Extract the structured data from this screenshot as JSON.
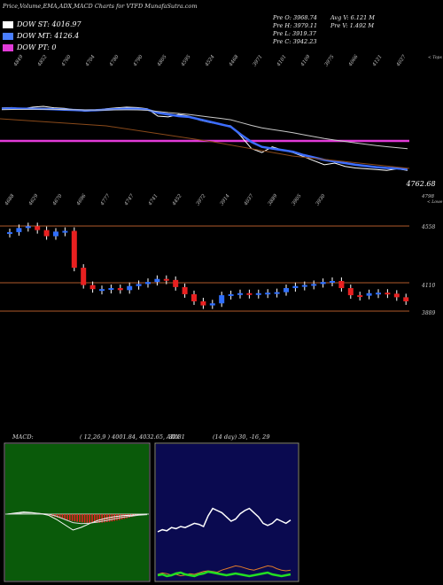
{
  "header": {
    "title": "Price,Volume,EMA,ADX,MACD Charts for VTFD MunafaSutra.com"
  },
  "legend": [
    {
      "label": "DOW ST: 4016.97",
      "color": "#ffffff"
    },
    {
      "label": "DOW MT: 4126.4",
      "color": "#4a7fff"
    },
    {
      "label": "DOW PT: 0",
      "color": "#e23bd8"
    }
  ],
  "ohlc": {
    "open": "Pre  O: 3968.74",
    "high": "Pre  H: 3979.11",
    "low": "Pre  L: 3919.37",
    "close": "Pre  C: 3942.23",
    "avg_volume": "Avg V: 6.121 M",
    "prev_volume": "Pre  V: 1.492  M"
  },
  "price_axis": {
    "current": "4762.68",
    "level_high": "4558",
    "level_mid": "4110",
    "level_low": "3889",
    "top_right_1": "4798",
    "top_right_2": "< Lowe",
    "corner": "< Tops"
  },
  "top_labels": [
    "4849",
    "4852",
    "4760",
    "4704",
    "4780",
    "4790",
    "4805",
    "4595",
    "4524",
    "4468",
    "3971",
    "4101",
    "4109",
    "3975",
    "4066",
    "4121",
    "4027"
  ],
  "bottom_labels": [
    "4688",
    "4629",
    "4670",
    "4696",
    "4777",
    "4747",
    "4741",
    "4452",
    "3972",
    "3914",
    "4037",
    "3889",
    "3905",
    "3930"
  ],
  "macd_panel": {
    "label": "MACD:",
    "values": "( 12,26,9 ) 4001.84,  4032.65,  -30.81"
  },
  "adx_panel": {
    "label": "ADX",
    "values": "(14  day) 30,  -16,  29"
  },
  "chart_data": [
    {
      "type": "line",
      "title": "EMA / Price",
      "series": [
        {
          "name": "Price",
          "values": [
            4800,
            4805,
            4790,
            4810,
            4820,
            4802,
            4795,
            4780,
            4760,
            4770,
            4790,
            4800,
            4810,
            4805,
            4790,
            4700,
            4690,
            4720,
            4700,
            4650,
            4620,
            4600,
            4580,
            4450,
            4300,
            4250,
            4320,
            4280,
            4250,
            4200,
            4150,
            4100,
            4120,
            4080,
            4060,
            4050,
            4040,
            4030,
            4050,
            4030
          ]
        },
        {
          "name": "EMA short",
          "values": [
            4790,
            4795,
            4792,
            4790,
            4788,
            4785,
            4780,
            4775,
            4770,
            4772,
            4778,
            4785,
            4790,
            4788,
            4780,
            4740,
            4720,
            4700,
            4690,
            4660,
            4630,
            4600,
            4570,
            4470,
            4380,
            4320,
            4300,
            4280,
            4260,
            4220,
            4190,
            4160,
            4140,
            4120,
            4100,
            4085,
            4070,
            4060,
            4055,
            4045
          ]
        },
        {
          "name": "EMA long",
          "values": [
            4780,
            4782,
            4783,
            4784,
            4784,
            4783,
            4781,
            4779,
            4776,
            4775,
            4775,
            4776,
            4777,
            4776,
            4772,
            4758,
            4744,
            4732,
            4720,
            4704,
            4688,
            4672,
            4655,
            4620,
            4585,
            4555,
            4535,
            4515,
            4495,
            4470,
            4447,
            4424,
            4405,
            4387,
            4369,
            4353,
            4337,
            4323,
            4310,
            4297
          ]
        }
      ],
      "support_line": 4558
    },
    {
      "type": "bar",
      "title": "Candles",
      "values": [
        4700,
        4740,
        4758,
        4720,
        4660,
        4705,
        4712,
        4350,
        4180,
        4140,
        4140,
        4150,
        4130,
        4170,
        4190,
        4210,
        4240,
        4230,
        4160,
        4090,
        4020,
        3980,
        4000,
        4080,
        4090,
        4100,
        4095,
        4100,
        4105,
        4110,
        4150,
        4170,
        4180,
        4190,
        4210,
        4220,
        4150,
        4080,
        4075,
        4100,
        4105,
        4095,
        4060,
        4020
      ]
    },
    {
      "type": "line",
      "title": "MACD",
      "series": [
        {
          "name": "MACD",
          "values": [
            0,
            2,
            4,
            3,
            1,
            -2,
            -10,
            -20,
            -30,
            -25,
            -18,
            -12,
            -8,
            -5,
            -3,
            -2,
            -1,
            0
          ]
        },
        {
          "name": "Signal",
          "values": [
            0,
            1,
            2,
            2,
            1,
            0,
            -4,
            -10,
            -16,
            -18,
            -17,
            -15,
            -12,
            -9,
            -6,
            -4,
            -2,
            -1
          ]
        }
      ]
    },
    {
      "type": "line",
      "title": "ADX",
      "series": [
        {
          "name": "+DI",
          "values": [
            30,
            32,
            31,
            34,
            33,
            35,
            34,
            36,
            38,
            37,
            35,
            45,
            52,
            50,
            48,
            44,
            40,
            42,
            47,
            50,
            52,
            48,
            44,
            38,
            36,
            38,
            42,
            40,
            38,
            41
          ]
        },
        {
          "name": "-DI",
          "values": [
            10,
            12,
            11,
            9,
            10,
            8,
            9,
            11,
            10,
            12,
            14,
            15,
            14,
            13,
            16,
            18,
            20,
            22,
            21,
            19,
            17,
            16,
            18,
            20,
            22,
            21,
            18,
            16,
            15,
            16
          ]
        },
        {
          "name": "ADX",
          "values": [
            8,
            9,
            7,
            8,
            10,
            11,
            9,
            8,
            7,
            9,
            10,
            12,
            11,
            10,
            9,
            8,
            9,
            10,
            9,
            8,
            7,
            8,
            9,
            10,
            11,
            9,
            8,
            7,
            8,
            9
          ]
        }
      ]
    }
  ]
}
